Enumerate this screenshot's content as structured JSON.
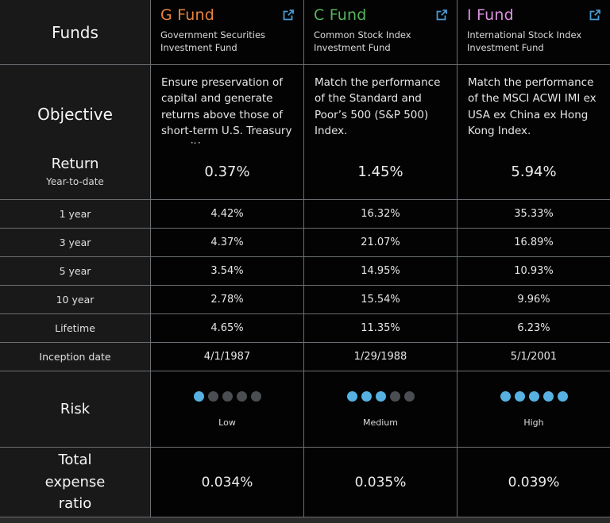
{
  "labels": {
    "funds": "Funds",
    "objective": "Objective",
    "return_title": "Return",
    "return_sub": "Year-to-date",
    "risk": "Risk",
    "expense": "Total expense ratio"
  },
  "colors": {
    "g_fund": "#e8833d",
    "c_fund": "#58b55e",
    "i_fund": "#dc93e0",
    "link_icon": "#4a9bd5",
    "risk_dot_on": "#56b1e2",
    "risk_dot_off": "#4a4d52"
  },
  "funds": [
    {
      "name": "G Fund",
      "color": "#e8833d",
      "subtitle": "Government Securities Investment Fund",
      "objective": "Ensure preservation of capital and generate returns above those of short-term U.S. Treasury securities.",
      "ytd": "0.37%",
      "risk": {
        "filled": 1,
        "total": 5,
        "label": "Low"
      },
      "expense": "0.034%"
    },
    {
      "name": "C Fund",
      "color": "#58b55e",
      "subtitle": "Common Stock Index Investment Fund",
      "objective": "Match the performance of the Standard and Poor’s 500 (S&P 500) Index.",
      "ytd": "1.45%",
      "risk": {
        "filled": 3,
        "total": 5,
        "label": "Medium"
      },
      "expense": "0.035%"
    },
    {
      "name": "I Fund",
      "color": "#dc93e0",
      "subtitle": "International Stock Index Investment Fund",
      "objective": "Match the performance of the MSCI ACWI IMI ex USA ex China ex Hong Kong Index.",
      "ytd": "5.94%",
      "risk": {
        "filled": 5,
        "total": 5,
        "label": "High"
      },
      "expense": "0.039%"
    }
  ],
  "return_rows": [
    {
      "label": "1 year",
      "values": [
        "4.42%",
        "16.32%",
        "35.33%"
      ]
    },
    {
      "label": "3 year",
      "values": [
        "4.37%",
        "21.07%",
        "16.89%"
      ]
    },
    {
      "label": "5 year",
      "values": [
        "3.54%",
        "14.95%",
        "10.93%"
      ]
    },
    {
      "label": "10 year",
      "values": [
        "2.78%",
        "15.54%",
        "9.96%"
      ]
    },
    {
      "label": "Lifetime",
      "values": [
        "4.65%",
        "11.35%",
        "6.23%"
      ]
    },
    {
      "label": "Inception date",
      "values": [
        "4/1/1987",
        "1/29/1988",
        "5/1/2001"
      ]
    }
  ]
}
